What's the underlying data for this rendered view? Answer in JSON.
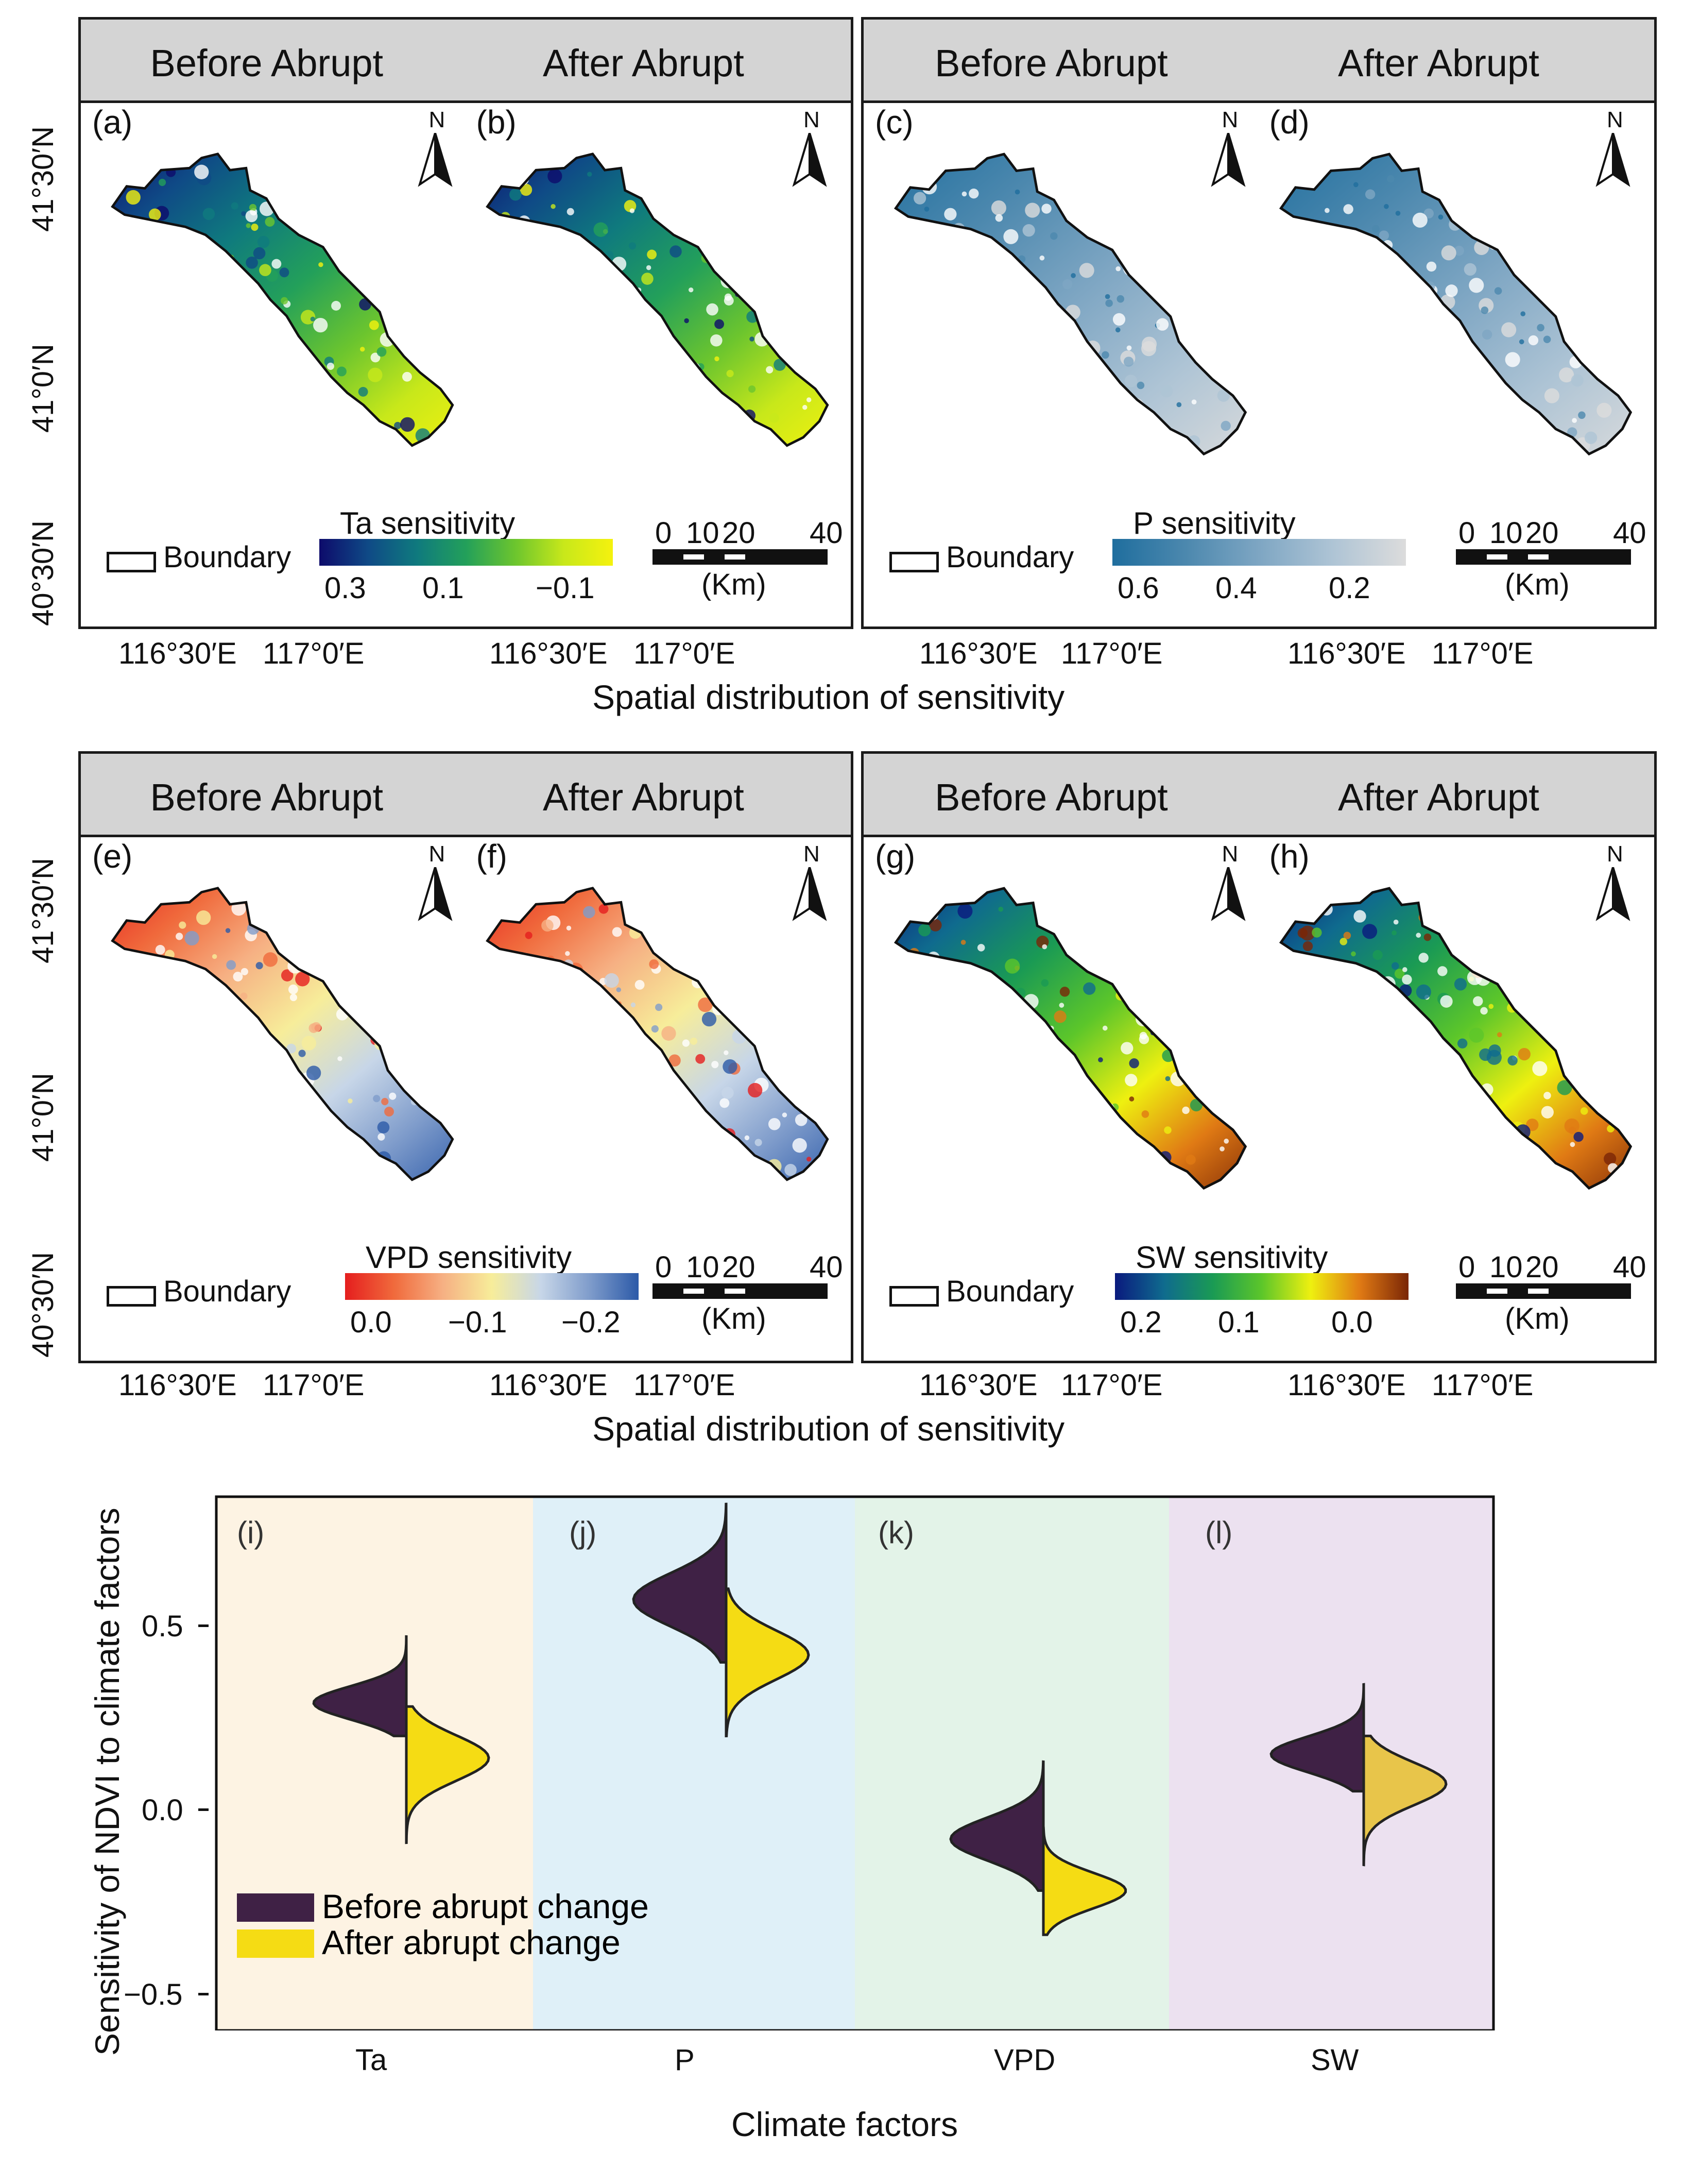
{
  "panels": [
    {
      "id": "top-left",
      "before": "Before Abrupt",
      "after": "After Abrupt",
      "labels": [
        "(a)",
        "(b)"
      ],
      "colorbar": {
        "title": "Ta sensitivity",
        "ticks": [
          "0.3",
          "0.1",
          "−0.1"
        ],
        "colors": [
          "#0d0b6b",
          "#0f4a86",
          "#0f7a7e",
          "#23a05a",
          "#6cc52e",
          "#c8e81a",
          "#f5f20e"
        ]
      }
    },
    {
      "id": "top-right",
      "before": "Before Abrupt",
      "after": "After Abrupt",
      "labels": [
        "(c)",
        "(d)"
      ],
      "colorbar": {
        "title": "P sensitivity",
        "ticks": [
          "0.6",
          "0.4",
          "0.2"
        ],
        "colors": [
          "#1f6e9e",
          "#4c88ae",
          "#7ea6c3",
          "#aec4d5",
          "#dcdcdc"
        ]
      }
    },
    {
      "id": "bottom-left",
      "before": "Before Abrupt",
      "after": "After Abrupt",
      "labels": [
        "(e)",
        "(f)"
      ],
      "colorbar": {
        "title": "VPD sensitivity",
        "ticks": [
          "0.0",
          "−0.1",
          "−0.2"
        ],
        "colors": [
          "#e51e1e",
          "#f06a3c",
          "#f6b083",
          "#f7ed9a",
          "#c7d6e8",
          "#7f9ccb",
          "#2c5aa8"
        ]
      }
    },
    {
      "id": "bottom-right",
      "before": "Before Abrupt",
      "after": "After Abrupt",
      "labels": [
        "(g)",
        "(h)"
      ],
      "colorbar": {
        "title": "SW sensitivity",
        "ticks": [
          "0.2",
          "0.1",
          "0.0"
        ],
        "colors": [
          "#0a1a7e",
          "#0f6b8e",
          "#1a9a54",
          "#5cc62a",
          "#eef010",
          "#e07a14",
          "#7a2606"
        ]
      }
    }
  ],
  "map_common": {
    "north": "N",
    "boundary_label": "Boundary",
    "scale_ticks": [
      "0",
      "10",
      "20",
      "40"
    ],
    "scale_unit": "(Km)",
    "lat_labels": [
      "41°30′N",
      "41°0′N",
      "40°30′N"
    ],
    "lon_labels": [
      "116°30′E",
      "117°0′E"
    ],
    "x_title": "Spatial distribution of sensitivity"
  },
  "violin": {
    "ylabel": "Sensitivity of NDVI to climate factors",
    "xlabel": "Climate factors",
    "yticks": [
      "0.5",
      "0.0",
      "−0.5"
    ],
    "legend": [
      "Before abrupt change",
      "After abrupt change"
    ],
    "colors": {
      "before": "#3f2145",
      "after": "#f5dc14",
      "after_sw": "#e8c54a"
    },
    "bands": [
      "#fdf3e3",
      "#dff0f8",
      "#e3f3e8",
      "#ece1f0"
    ]
  },
  "chart_data": {
    "type": "violin",
    "title": "",
    "xlabel": "Climate factors",
    "ylabel": "Sensitivity of NDVI to climate factors",
    "ylim": [
      -0.6,
      0.85
    ],
    "categories": [
      "Ta",
      "P",
      "VPD",
      "SW"
    ],
    "panel_labels": [
      "(i)",
      "(j)",
      "(k)",
      "(l)"
    ],
    "series": [
      {
        "name": "Before abrupt change",
        "range": [
          [
            0.2,
            0.47
          ],
          [
            0.4,
            0.83
          ],
          [
            -0.22,
            0.13
          ],
          [
            0.05,
            0.34
          ]
        ],
        "peak": [
          0.29,
          0.57,
          -0.08,
          0.15
        ]
      },
      {
        "name": "After abrupt change",
        "range": [
          [
            -0.09,
            0.28
          ],
          [
            0.2,
            0.6
          ],
          [
            -0.34,
            -0.05
          ],
          [
            -0.15,
            0.2
          ]
        ],
        "peak": [
          0.14,
          0.42,
          -0.22,
          0.07
        ]
      }
    ]
  }
}
